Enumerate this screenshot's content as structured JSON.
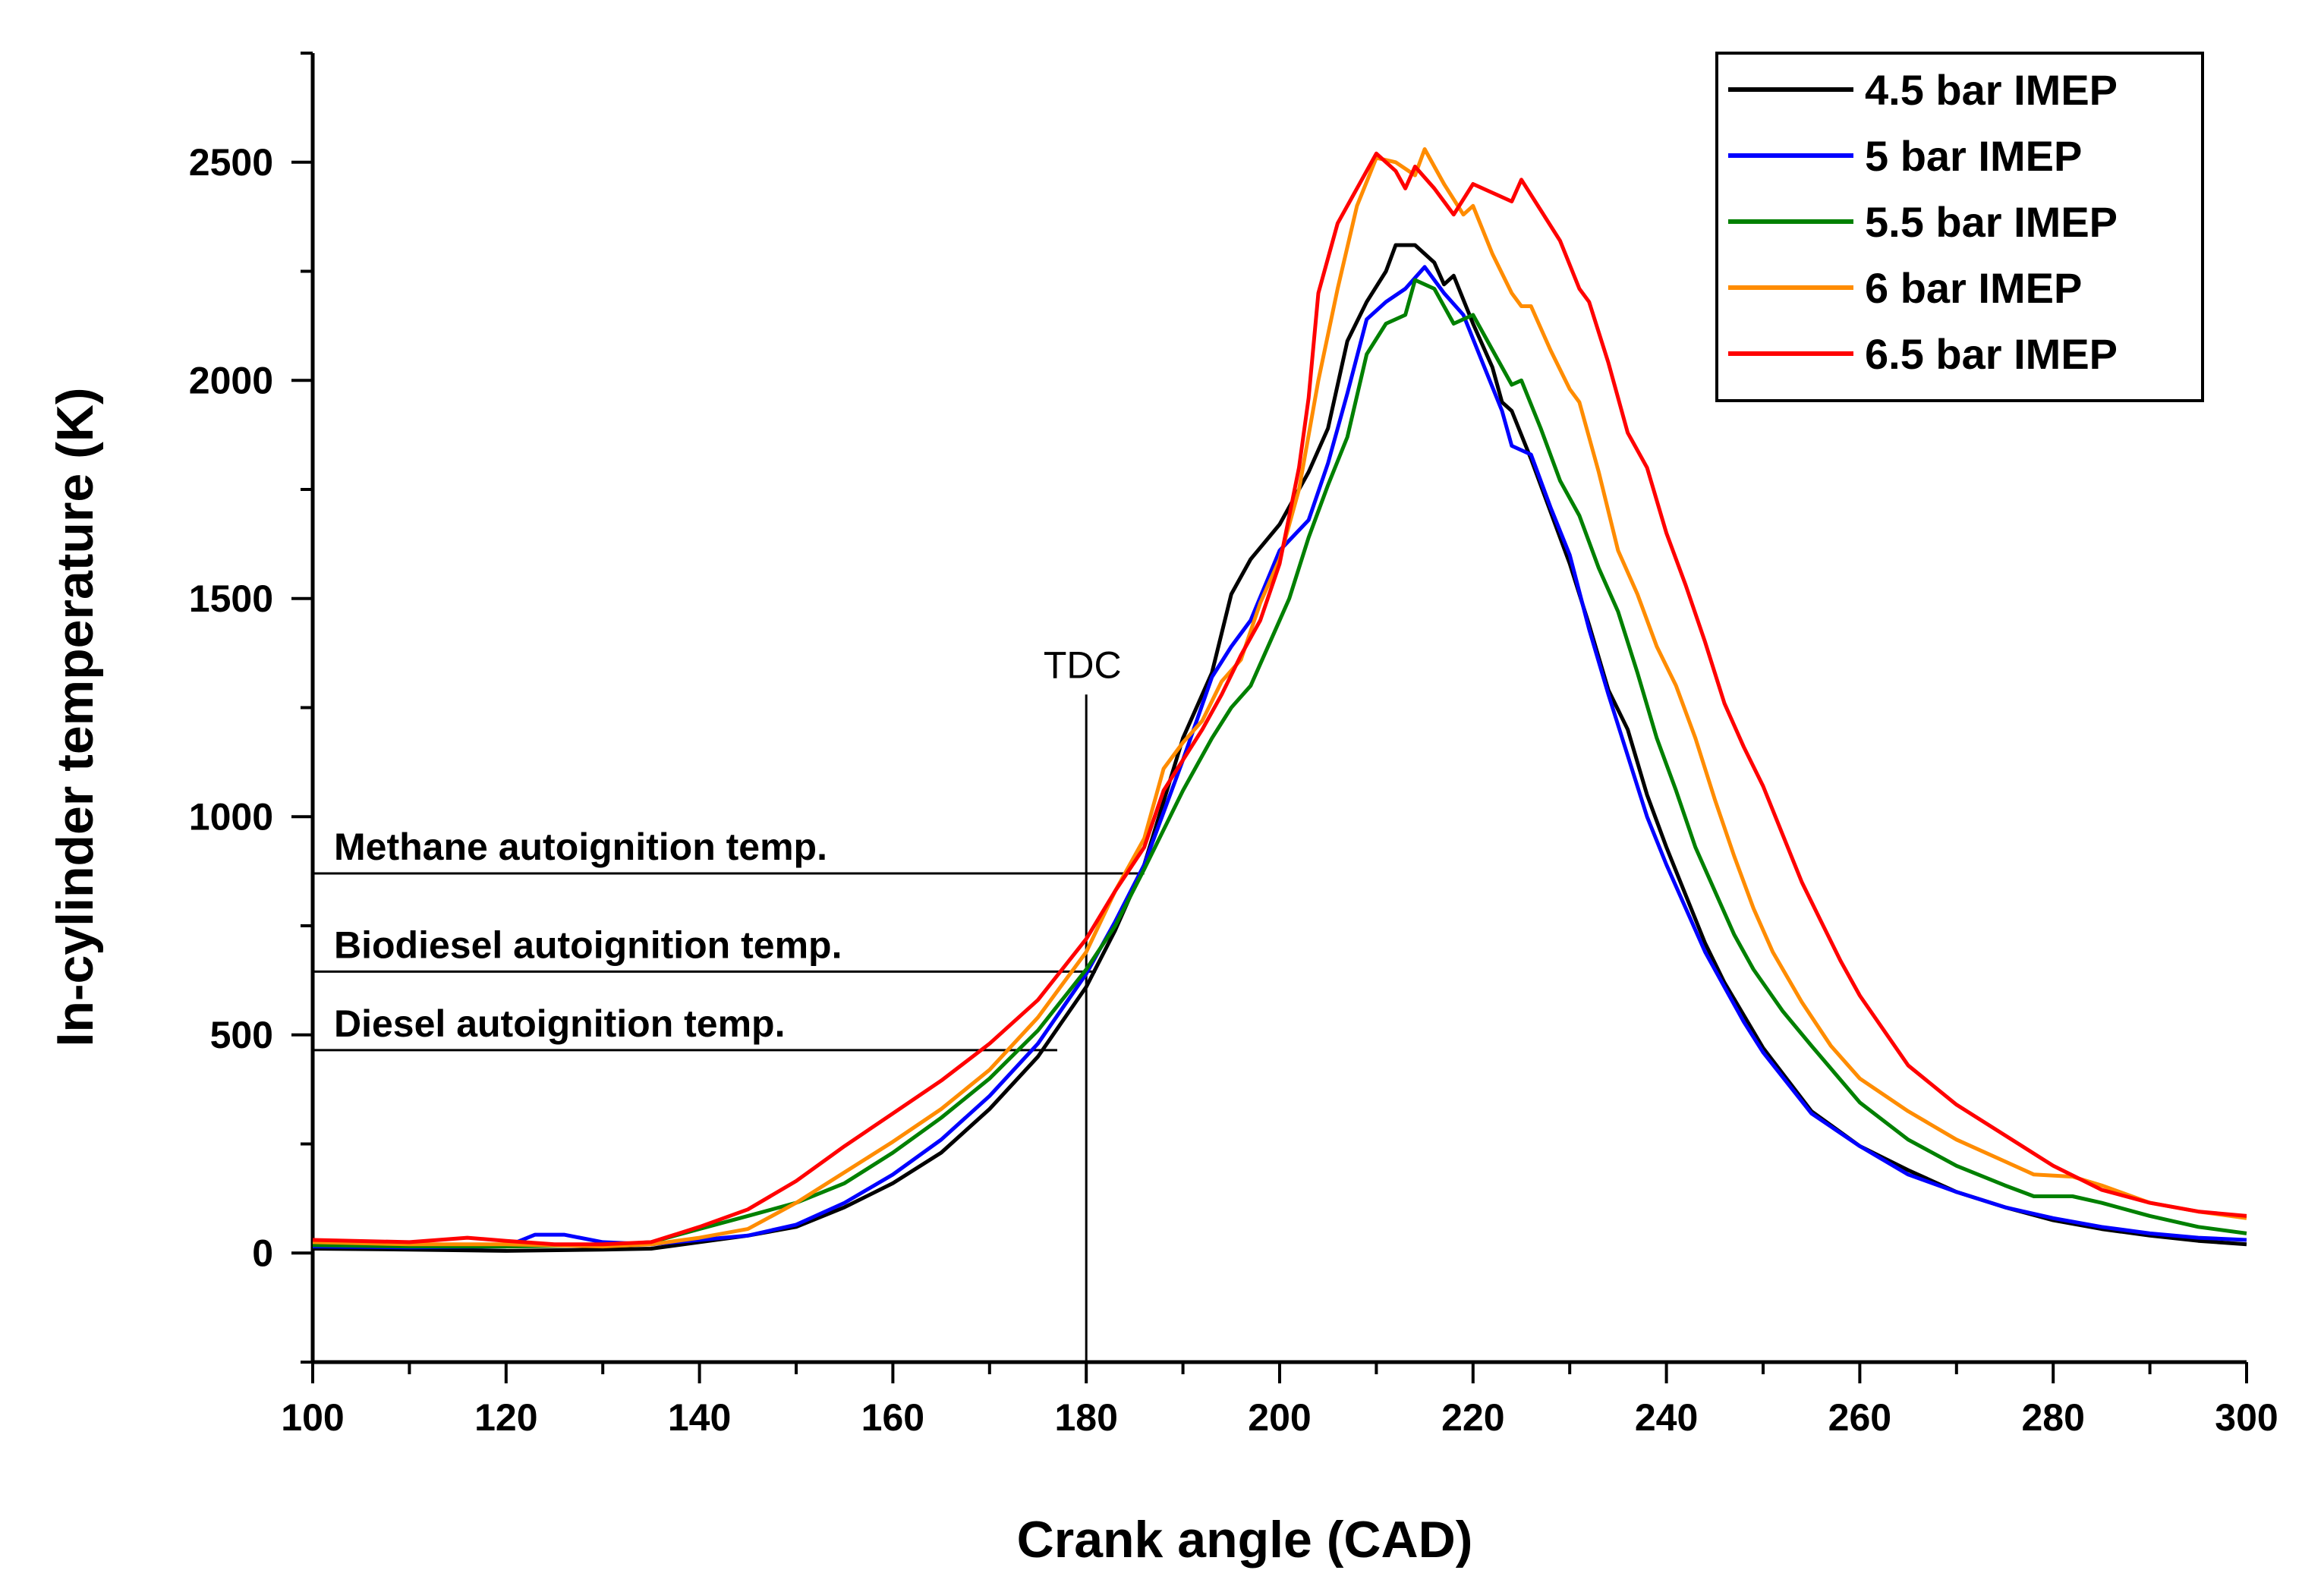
{
  "chart_data": {
    "type": "line",
    "title": "",
    "xlabel": "Crank angle (CAD)",
    "ylabel": "In-cylinder temperature (K)",
    "xlim": [
      100,
      300
    ],
    "ylim": [
      -250,
      2750
    ],
    "xticks": [
      100,
      120,
      140,
      160,
      180,
      200,
      220,
      240,
      260,
      280,
      300
    ],
    "yticks": [
      0,
      500,
      1000,
      1500,
      2000,
      2500
    ],
    "grid": false,
    "legend_position": "top-right",
    "tdc": {
      "label": "TDC",
      "x": 180,
      "y_top": 1280
    },
    "reference_lines": [
      {
        "label": "Methane autoignition temp.",
        "y": 870,
        "x_start": 100,
        "x_end": 186
      },
      {
        "label": "Biodiesel autoignition temp.",
        "y": 645,
        "x_start": 100,
        "x_end": 181
      },
      {
        "label": "Diesel autoignition temp.",
        "y": 465,
        "x_start": 100,
        "x_end": 177
      }
    ],
    "series": [
      {
        "name": "4.5 bar IMEP",
        "color": "#000000",
        "points": [
          [
            100,
            10
          ],
          [
            110,
            8
          ],
          [
            120,
            5
          ],
          [
            130,
            8
          ],
          [
            135,
            10
          ],
          [
            140,
            25
          ],
          [
            145,
            40
          ],
          [
            150,
            60
          ],
          [
            155,
            105
          ],
          [
            160,
            160
          ],
          [
            165,
            230
          ],
          [
            170,
            330
          ],
          [
            175,
            450
          ],
          [
            180,
            610
          ],
          [
            183,
            740
          ],
          [
            186,
            890
          ],
          [
            190,
            1180
          ],
          [
            193,
            1330
          ],
          [
            195,
            1510
          ],
          [
            197,
            1590
          ],
          [
            200,
            1670
          ],
          [
            203,
            1790
          ],
          [
            205,
            1890
          ],
          [
            207,
            2090
          ],
          [
            209,
            2180
          ],
          [
            211,
            2250
          ],
          [
            212,
            2310
          ],
          [
            214,
            2310
          ],
          [
            216,
            2270
          ],
          [
            217,
            2220
          ],
          [
            218,
            2240
          ],
          [
            220,
            2130
          ],
          [
            222,
            2030
          ],
          [
            223,
            1950
          ],
          [
            224,
            1930
          ],
          [
            226,
            1820
          ],
          [
            228,
            1700
          ],
          [
            230,
            1580
          ],
          [
            232,
            1440
          ],
          [
            234,
            1290
          ],
          [
            236,
            1200
          ],
          [
            238,
            1050
          ],
          [
            240,
            930
          ],
          [
            242,
            820
          ],
          [
            244,
            710
          ],
          [
            246,
            620
          ],
          [
            248,
            545
          ],
          [
            250,
            470
          ],
          [
            255,
            325
          ],
          [
            260,
            245
          ],
          [
            265,
            190
          ],
          [
            270,
            140
          ],
          [
            275,
            105
          ],
          [
            280,
            75
          ],
          [
            285,
            55
          ],
          [
            290,
            40
          ],
          [
            295,
            28
          ],
          [
            300,
            20
          ]
        ]
      },
      {
        "name": "5 bar IMEP",
        "color": "#0000ff",
        "points": [
          [
            100,
            15
          ],
          [
            110,
            13
          ],
          [
            120,
            15
          ],
          [
            123,
            42
          ],
          [
            126,
            42
          ],
          [
            130,
            25
          ],
          [
            135,
            20
          ],
          [
            140,
            30
          ],
          [
            145,
            40
          ],
          [
            150,
            65
          ],
          [
            155,
            115
          ],
          [
            160,
            180
          ],
          [
            165,
            260
          ],
          [
            170,
            360
          ],
          [
            175,
            480
          ],
          [
            180,
            640
          ],
          [
            183,
            760
          ],
          [
            186,
            890
          ],
          [
            190,
            1130
          ],
          [
            193,
            1320
          ],
          [
            195,
            1390
          ],
          [
            197,
            1450
          ],
          [
            200,
            1610
          ],
          [
            203,
            1680
          ],
          [
            205,
            1810
          ],
          [
            207,
            1970
          ],
          [
            209,
            2140
          ],
          [
            211,
            2180
          ],
          [
            213,
            2210
          ],
          [
            215,
            2260
          ],
          [
            217,
            2200
          ],
          [
            219,
            2150
          ],
          [
            221,
            2040
          ],
          [
            223,
            1930
          ],
          [
            224,
            1850
          ],
          [
            226,
            1830
          ],
          [
            228,
            1710
          ],
          [
            230,
            1600
          ],
          [
            232,
            1430
          ],
          [
            234,
            1280
          ],
          [
            236,
            1140
          ],
          [
            238,
            1000
          ],
          [
            240,
            890
          ],
          [
            242,
            790
          ],
          [
            244,
            690
          ],
          [
            246,
            610
          ],
          [
            248,
            530
          ],
          [
            250,
            460
          ],
          [
            255,
            320
          ],
          [
            260,
            245
          ],
          [
            265,
            180
          ],
          [
            270,
            140
          ],
          [
            275,
            105
          ],
          [
            280,
            80
          ],
          [
            285,
            60
          ],
          [
            290,
            45
          ],
          [
            295,
            35
          ],
          [
            300,
            30
          ]
        ]
      },
      {
        "name": "5.5 bar IMEP",
        "color": "#008000",
        "points": [
          [
            100,
            18
          ],
          [
            110,
            15
          ],
          [
            120,
            15
          ],
          [
            130,
            18
          ],
          [
            135,
            25
          ],
          [
            140,
            55
          ],
          [
            145,
            85
          ],
          [
            150,
            115
          ],
          [
            155,
            160
          ],
          [
            160,
            230
          ],
          [
            165,
            310
          ],
          [
            170,
            400
          ],
          [
            175,
            510
          ],
          [
            180,
            650
          ],
          [
            183,
            750
          ],
          [
            186,
            880
          ],
          [
            190,
            1060
          ],
          [
            193,
            1180
          ],
          [
            195,
            1250
          ],
          [
            197,
            1300
          ],
          [
            199,
            1400
          ],
          [
            201,
            1500
          ],
          [
            203,
            1640
          ],
          [
            205,
            1760
          ],
          [
            207,
            1870
          ],
          [
            209,
            2060
          ],
          [
            211,
            2130
          ],
          [
            213,
            2150
          ],
          [
            214,
            2230
          ],
          [
            216,
            2210
          ],
          [
            218,
            2130
          ],
          [
            220,
            2150
          ],
          [
            222,
            2070
          ],
          [
            224,
            1990
          ],
          [
            225,
            2000
          ],
          [
            227,
            1890
          ],
          [
            229,
            1770
          ],
          [
            231,
            1690
          ],
          [
            233,
            1570
          ],
          [
            235,
            1470
          ],
          [
            237,
            1330
          ],
          [
            239,
            1180
          ],
          [
            241,
            1060
          ],
          [
            243,
            930
          ],
          [
            245,
            830
          ],
          [
            247,
            730
          ],
          [
            249,
            650
          ],
          [
            252,
            555
          ],
          [
            255,
            475
          ],
          [
            260,
            345
          ],
          [
            265,
            260
          ],
          [
            270,
            200
          ],
          [
            275,
            155
          ],
          [
            278,
            130
          ],
          [
            282,
            130
          ],
          [
            285,
            115
          ],
          [
            290,
            85
          ],
          [
            295,
            60
          ],
          [
            300,
            45
          ]
        ]
      },
      {
        "name": "6 bar IMEP",
        "color": "#ff8c00",
        "points": [
          [
            100,
            25
          ],
          [
            110,
            20
          ],
          [
            120,
            20
          ],
          [
            130,
            15
          ],
          [
            135,
            20
          ],
          [
            140,
            35
          ],
          [
            145,
            55
          ],
          [
            150,
            115
          ],
          [
            155,
            185
          ],
          [
            160,
            255
          ],
          [
            165,
            330
          ],
          [
            170,
            420
          ],
          [
            175,
            540
          ],
          [
            180,
            690
          ],
          [
            183,
            830
          ],
          [
            186,
            950
          ],
          [
            188,
            1110
          ],
          [
            190,
            1170
          ],
          [
            192,
            1220
          ],
          [
            194,
            1310
          ],
          [
            196,
            1360
          ],
          [
            198,
            1490
          ],
          [
            200,
            1590
          ],
          [
            202,
            1750
          ],
          [
            204,
            2000
          ],
          [
            206,
            2210
          ],
          [
            208,
            2400
          ],
          [
            210,
            2510
          ],
          [
            212,
            2500
          ],
          [
            214,
            2470
          ],
          [
            215,
            2530
          ],
          [
            217,
            2450
          ],
          [
            219,
            2380
          ],
          [
            220,
            2400
          ],
          [
            222,
            2290
          ],
          [
            224,
            2200
          ],
          [
            225,
            2170
          ],
          [
            226,
            2170
          ],
          [
            228,
            2070
          ],
          [
            230,
            1980
          ],
          [
            231,
            1950
          ],
          [
            233,
            1790
          ],
          [
            235,
            1610
          ],
          [
            237,
            1510
          ],
          [
            239,
            1390
          ],
          [
            241,
            1300
          ],
          [
            243,
            1180
          ],
          [
            245,
            1040
          ],
          [
            247,
            910
          ],
          [
            249,
            790
          ],
          [
            251,
            690
          ],
          [
            254,
            575
          ],
          [
            257,
            475
          ],
          [
            260,
            400
          ],
          [
            265,
            325
          ],
          [
            270,
            260
          ],
          [
            275,
            210
          ],
          [
            278,
            180
          ],
          [
            282,
            175
          ],
          [
            285,
            155
          ],
          [
            290,
            115
          ],
          [
            295,
            95
          ],
          [
            300,
            80
          ]
        ]
      },
      {
        "name": "6.5 bar IMEP",
        "color": "#ff0000",
        "points": [
          [
            100,
            30
          ],
          [
            110,
            25
          ],
          [
            116,
            35
          ],
          [
            120,
            28
          ],
          [
            125,
            20
          ],
          [
            130,
            20
          ],
          [
            135,
            25
          ],
          [
            140,
            60
          ],
          [
            145,
            100
          ],
          [
            150,
            165
          ],
          [
            155,
            245
          ],
          [
            160,
            320
          ],
          [
            165,
            395
          ],
          [
            170,
            480
          ],
          [
            175,
            580
          ],
          [
            180,
            720
          ],
          [
            183,
            830
          ],
          [
            186,
            930
          ],
          [
            188,
            1060
          ],
          [
            190,
            1130
          ],
          [
            192,
            1200
          ],
          [
            194,
            1280
          ],
          [
            196,
            1370
          ],
          [
            198,
            1450
          ],
          [
            200,
            1580
          ],
          [
            202,
            1800
          ],
          [
            203,
            1960
          ],
          [
            204,
            2200
          ],
          [
            206,
            2360
          ],
          [
            208,
            2440
          ],
          [
            210,
            2520
          ],
          [
            212,
            2480
          ],
          [
            213,
            2440
          ],
          [
            214,
            2490
          ],
          [
            216,
            2440
          ],
          [
            218,
            2380
          ],
          [
            220,
            2450
          ],
          [
            222,
            2430
          ],
          [
            224,
            2410
          ],
          [
            225,
            2460
          ],
          [
            227,
            2390
          ],
          [
            229,
            2320
          ],
          [
            231,
            2210
          ],
          [
            232,
            2180
          ],
          [
            234,
            2040
          ],
          [
            236,
            1880
          ],
          [
            238,
            1800
          ],
          [
            240,
            1650
          ],
          [
            242,
            1530
          ],
          [
            244,
            1400
          ],
          [
            246,
            1260
          ],
          [
            248,
            1160
          ],
          [
            250,
            1070
          ],
          [
            252,
            960
          ],
          [
            254,
            850
          ],
          [
            256,
            760
          ],
          [
            258,
            670
          ],
          [
            260,
            590
          ],
          [
            265,
            430
          ],
          [
            270,
            340
          ],
          [
            275,
            270
          ],
          [
            280,
            200
          ],
          [
            285,
            145
          ],
          [
            290,
            115
          ],
          [
            295,
            95
          ],
          [
            300,
            85
          ]
        ]
      }
    ]
  }
}
